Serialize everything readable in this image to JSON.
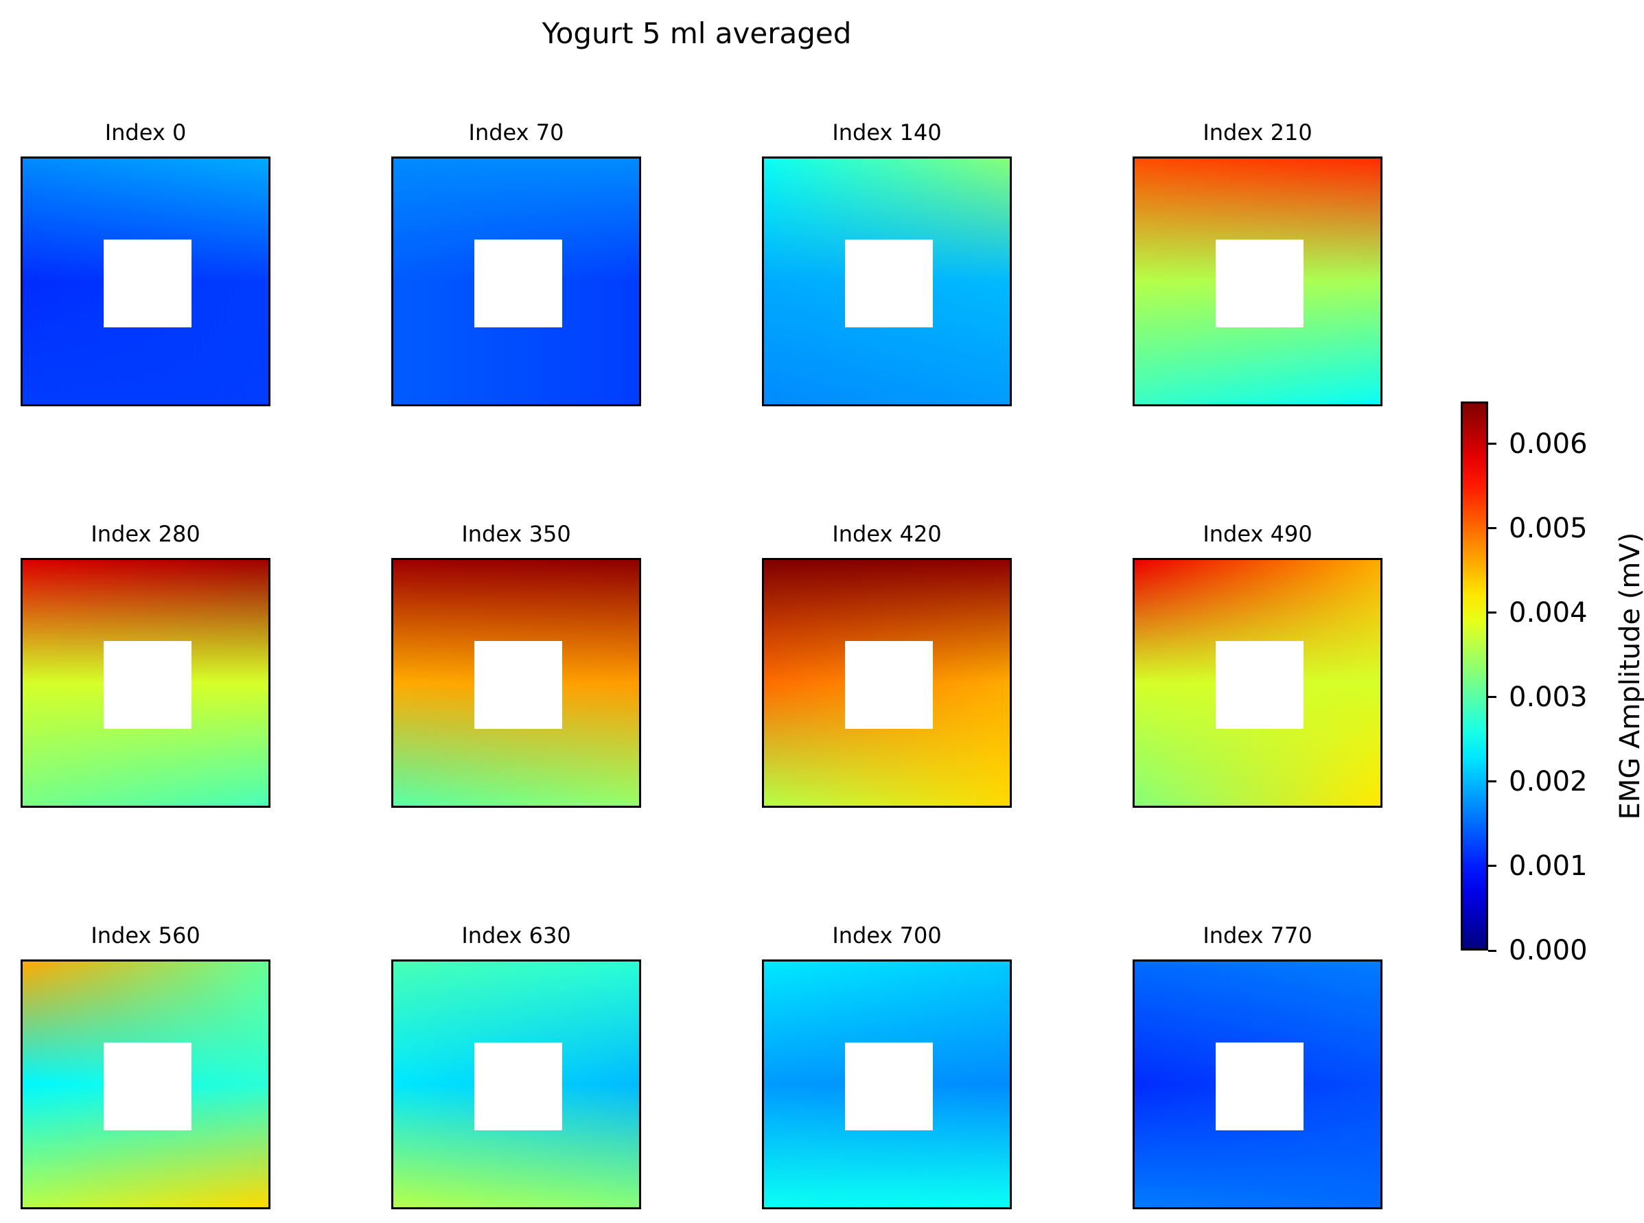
{
  "chart_data": {
    "type": "heatmap",
    "title": "Yogurt 5 ml averaged",
    "colormap": "jet",
    "center_cell": "empty",
    "colorbar": {
      "label": "EMG Amplitude (mV)",
      "range": [
        0,
        0.0065
      ],
      "ticks": [
        0.0,
        0.001,
        0.002,
        0.003,
        0.004,
        0.005,
        0.006
      ],
      "tick_labels": [
        "0.000",
        "0.001",
        "0.002",
        "0.003",
        "0.004",
        "0.005",
        "0.006"
      ]
    },
    "panels": [
      {
        "title": "Index 0",
        "corners": {
          "tl": 0.0017,
          "tr": 0.0019,
          "ml": 0.0011,
          "mr": 0.0012,
          "bl": 0.0012,
          "br": 0.0012
        }
      },
      {
        "title": "Index 70",
        "corners": {
          "tl": 0.0017,
          "tr": 0.0017,
          "ml": 0.0014,
          "mr": 0.0012,
          "bl": 0.0014,
          "br": 0.0012
        }
      },
      {
        "title": "Index 140",
        "corners": {
          "tl": 0.0025,
          "tr": 0.0033,
          "ml": 0.0019,
          "mr": 0.002,
          "bl": 0.0017,
          "br": 0.0018
        }
      },
      {
        "title": "Index 210",
        "corners": {
          "tl": 0.0052,
          "tr": 0.0054,
          "ml": 0.0036,
          "mr": 0.0035,
          "bl": 0.0028,
          "br": 0.0025
        }
      },
      {
        "title": "Index 280",
        "corners": {
          "tl": 0.0059,
          "tr": 0.0063,
          "ml": 0.0038,
          "mr": 0.0038,
          "bl": 0.0032,
          "br": 0.0029
        }
      },
      {
        "title": "Index 350",
        "corners": {
          "tl": 0.0063,
          "tr": 0.0064,
          "ml": 0.0046,
          "mr": 0.0047,
          "bl": 0.003,
          "br": 0.0034
        }
      },
      {
        "title": "Index 420",
        "corners": {
          "tl": 0.0065,
          "tr": 0.0064,
          "ml": 0.005,
          "mr": 0.0046,
          "bl": 0.0036,
          "br": 0.0043
        }
      },
      {
        "title": "Index 490",
        "corners": {
          "tl": 0.0058,
          "tr": 0.0046,
          "ml": 0.0038,
          "mr": 0.0038,
          "bl": 0.0033,
          "br": 0.0042
        }
      },
      {
        "title": "Index 560",
        "corners": {
          "tl": 0.0046,
          "tr": 0.0031,
          "ml": 0.0024,
          "mr": 0.0027,
          "bl": 0.0036,
          "br": 0.0043
        }
      },
      {
        "title": "Index 630",
        "corners": {
          "tl": 0.0029,
          "tr": 0.0027,
          "ml": 0.0023,
          "mr": 0.002,
          "bl": 0.0036,
          "br": 0.0033
        }
      },
      {
        "title": "Index 700",
        "corners": {
          "tl": 0.0023,
          "tr": 0.0021,
          "ml": 0.0018,
          "mr": 0.0017,
          "bl": 0.0025,
          "br": 0.0025
        }
      },
      {
        "title": "Index 770",
        "corners": {
          "tl": 0.0015,
          "tr": 0.0016,
          "ml": 0.0011,
          "mr": 0.0013,
          "bl": 0.0016,
          "br": 0.0015
        }
      }
    ]
  }
}
